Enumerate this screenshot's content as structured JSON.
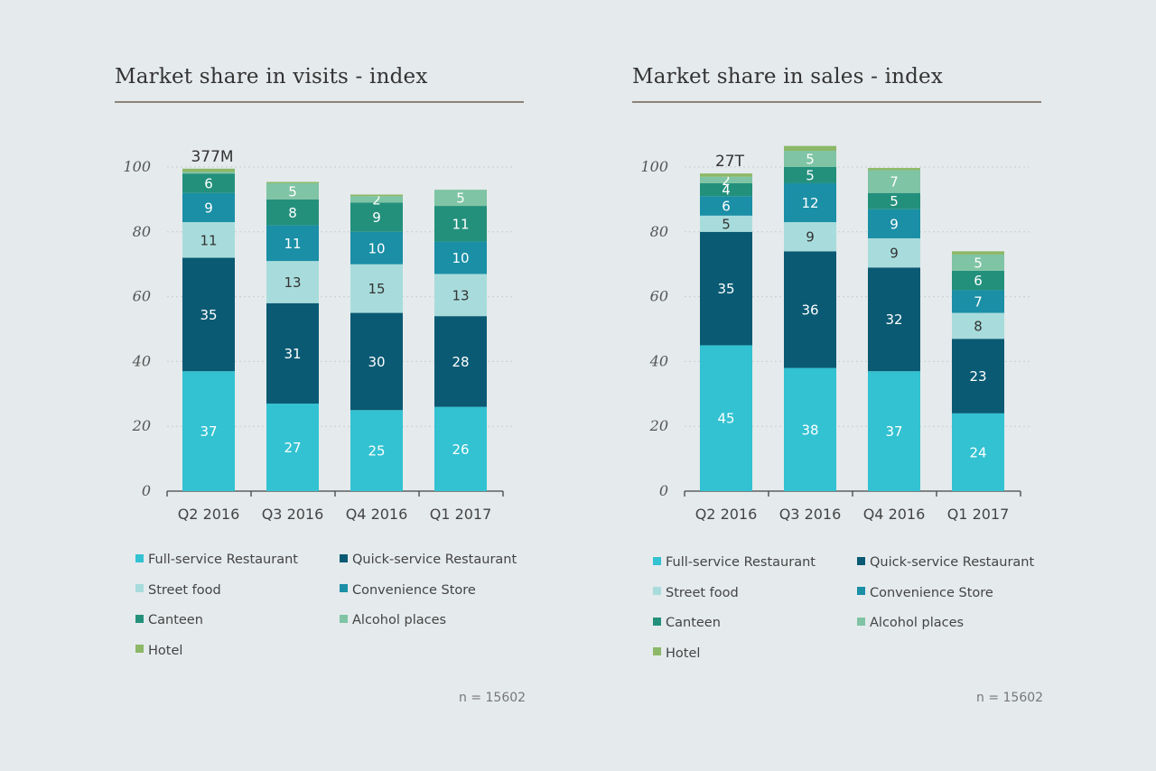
{
  "charts": [
    {
      "title": "Market share in visits - index",
      "note": "n = 15602",
      "total_label": "377M"
    },
    {
      "title": "Market share in sales - index",
      "note": "n = 15602",
      "total_label": "27T"
    }
  ],
  "legend": [
    {
      "name": "Full-service Restaurant",
      "color": "#32c2d2"
    },
    {
      "name": "Quick-service Restaurant",
      "color": "#0a5a74"
    },
    {
      "name": "Street food",
      "color": "#a8dcdc"
    },
    {
      "name": "Convenience Store",
      "color": "#1a8fa6"
    },
    {
      "name": "Canteen",
      "color": "#23907c"
    },
    {
      "name": "Alcohol places",
      "color": "#7fc4a4"
    },
    {
      "name": "Hotel",
      "color": "#8cb867"
    }
  ],
  "chart_data": [
    {
      "type": "bar",
      "stacked": true,
      "title": "Market share in visits - index",
      "categories": [
        "Q2 2016",
        "Q3 2016",
        "Q4 2016",
        "Q1 2017"
      ],
      "ylim": [
        0,
        100
      ],
      "yticks": [
        0,
        20,
        40,
        60,
        80,
        100
      ],
      "grid": true,
      "total_label": "377M",
      "series": [
        {
          "name": "Full-service Restaurant",
          "values": [
            37,
            27,
            25,
            26
          ]
        },
        {
          "name": "Quick-service Restaurant",
          "values": [
            35,
            31,
            30,
            28
          ]
        },
        {
          "name": "Street food",
          "values": [
            11,
            13,
            15,
            13
          ]
        },
        {
          "name": "Convenience Store",
          "values": [
            9,
            11,
            10,
            10
          ]
        },
        {
          "name": "Canteen",
          "values": [
            6,
            8,
            9,
            11
          ]
        },
        {
          "name": "Alcohol places",
          "values": [
            0.5,
            5,
            2,
            5
          ]
        },
        {
          "name": "Hotel",
          "values": [
            1,
            0.4,
            0.5,
            0
          ]
        }
      ],
      "labels": [
        [
          "37",
          "27",
          "25",
          "26"
        ],
        [
          "35",
          "31",
          "30",
          "28"
        ],
        [
          "11",
          "13",
          "15",
          "13"
        ],
        [
          "9",
          "11",
          "10",
          "10"
        ],
        [
          "6",
          "8",
          "9",
          "11"
        ],
        [
          "",
          "5",
          "2",
          "5"
        ],
        [
          "",
          "",
          "",
          ""
        ]
      ]
    },
    {
      "type": "bar",
      "stacked": true,
      "title": "Market share in sales - index",
      "categories": [
        "Q2 2016",
        "Q3 2016",
        "Q4 2016",
        "Q1 2017"
      ],
      "ylim": [
        0,
        100
      ],
      "yticks": [
        0,
        20,
        40,
        60,
        80,
        100
      ],
      "grid": true,
      "total_label": "27T",
      "series": [
        {
          "name": "Full-service Restaurant",
          "values": [
            45,
            38,
            37,
            24
          ]
        },
        {
          "name": "Quick-service Restaurant",
          "values": [
            35,
            36,
            32,
            23
          ]
        },
        {
          "name": "Street food",
          "values": [
            5,
            9,
            9,
            8
          ]
        },
        {
          "name": "Convenience Store",
          "values": [
            6,
            12,
            9,
            7
          ]
        },
        {
          "name": "Canteen",
          "values": [
            4,
            5,
            5,
            6
          ]
        },
        {
          "name": "Alcohol places",
          "values": [
            2,
            5,
            7,
            5
          ]
        },
        {
          "name": "Hotel",
          "values": [
            1,
            1.5,
            0.7,
            1
          ]
        }
      ],
      "labels": [
        [
          "45",
          "38",
          "37",
          "24"
        ],
        [
          "35",
          "36",
          "32",
          "23"
        ],
        [
          "5",
          "9",
          "9",
          "8"
        ],
        [
          "6",
          "12",
          "9",
          "7"
        ],
        [
          "4",
          "5",
          "5",
          "6"
        ],
        [
          "2",
          "5",
          "7",
          "5"
        ],
        [
          "",
          "",
          "",
          ""
        ]
      ]
    }
  ]
}
